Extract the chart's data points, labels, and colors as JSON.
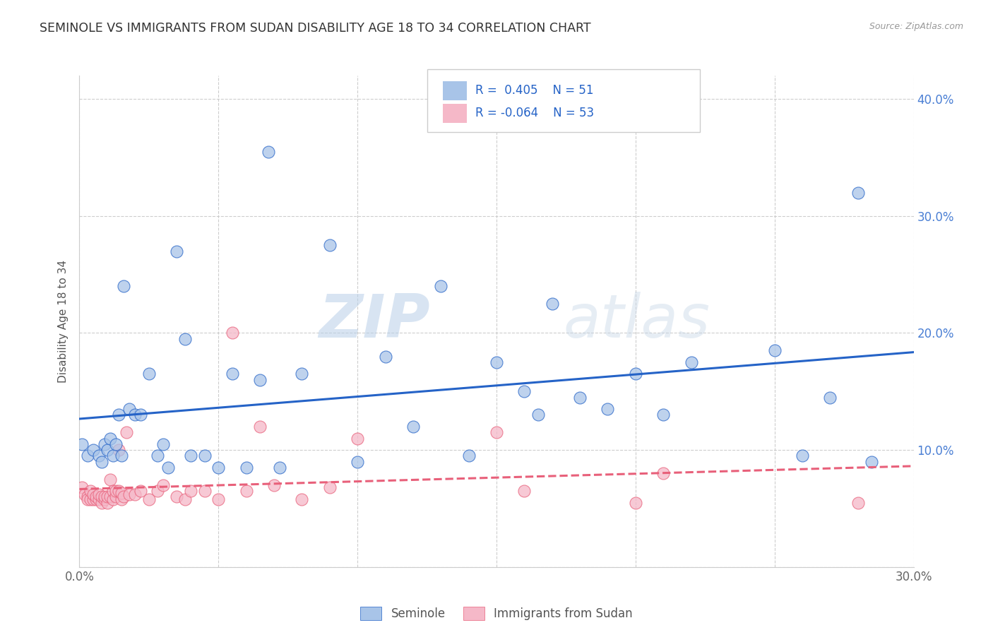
{
  "title": "SEMINOLE VS IMMIGRANTS FROM SUDAN DISABILITY AGE 18 TO 34 CORRELATION CHART",
  "source": "Source: ZipAtlas.com",
  "ylabel": "Disability Age 18 to 34",
  "xlim": [
    0.0,
    0.3
  ],
  "ylim": [
    0.0,
    0.42
  ],
  "seminole_color": "#a8c4e8",
  "immigrants_color": "#f5b8c8",
  "trend_seminole_color": "#2563c7",
  "trend_immigrants_color": "#e8607a",
  "right_axis_color": "#4a7fd4",
  "legend_seminole_label": "Seminole",
  "legend_immigrants_label": "Immigrants from Sudan",
  "r_seminole": "0.405",
  "n_seminole": "51",
  "r_immigrants": "-0.064",
  "n_immigrants": "53",
  "watermark_zip": "ZIP",
  "watermark_atlas": "atlas",
  "background_color": "#ffffff",
  "grid_color": "#c8c8c8",
  "seminole_x": [
    0.001,
    0.003,
    0.005,
    0.007,
    0.008,
    0.009,
    0.01,
    0.011,
    0.012,
    0.013,
    0.014,
    0.015,
    0.016,
    0.018,
    0.02,
    0.022,
    0.025,
    0.028,
    0.03,
    0.032,
    0.035,
    0.038,
    0.04,
    0.045,
    0.05,
    0.055,
    0.06,
    0.065,
    0.068,
    0.072,
    0.08,
    0.09,
    0.1,
    0.11,
    0.12,
    0.13,
    0.14,
    0.15,
    0.16,
    0.165,
    0.17,
    0.18,
    0.19,
    0.2,
    0.21,
    0.22,
    0.25,
    0.26,
    0.27,
    0.28,
    0.285
  ],
  "seminole_y": [
    0.105,
    0.095,
    0.1,
    0.095,
    0.09,
    0.105,
    0.1,
    0.11,
    0.095,
    0.105,
    0.13,
    0.095,
    0.24,
    0.135,
    0.13,
    0.13,
    0.165,
    0.095,
    0.105,
    0.085,
    0.27,
    0.195,
    0.095,
    0.095,
    0.085,
    0.165,
    0.085,
    0.16,
    0.355,
    0.085,
    0.165,
    0.275,
    0.09,
    0.18,
    0.12,
    0.24,
    0.095,
    0.175,
    0.15,
    0.13,
    0.225,
    0.145,
    0.135,
    0.165,
    0.13,
    0.175,
    0.185,
    0.095,
    0.145,
    0.32,
    0.09
  ],
  "immigrants_x": [
    0.001,
    0.002,
    0.003,
    0.003,
    0.004,
    0.004,
    0.005,
    0.005,
    0.006,
    0.006,
    0.007,
    0.007,
    0.008,
    0.008,
    0.009,
    0.009,
    0.01,
    0.01,
    0.011,
    0.011,
    0.012,
    0.012,
    0.013,
    0.013,
    0.014,
    0.014,
    0.015,
    0.015,
    0.016,
    0.017,
    0.018,
    0.02,
    0.022,
    0.025,
    0.028,
    0.03,
    0.035,
    0.038,
    0.04,
    0.045,
    0.05,
    0.055,
    0.06,
    0.065,
    0.07,
    0.08,
    0.09,
    0.1,
    0.15,
    0.16,
    0.2,
    0.21,
    0.28
  ],
  "immigrants_y": [
    0.068,
    0.062,
    0.06,
    0.058,
    0.058,
    0.065,
    0.058,
    0.062,
    0.058,
    0.06,
    0.058,
    0.062,
    0.055,
    0.06,
    0.058,
    0.06,
    0.055,
    0.06,
    0.06,
    0.075,
    0.058,
    0.065,
    0.06,
    0.065,
    0.1,
    0.065,
    0.058,
    0.063,
    0.06,
    0.115,
    0.062,
    0.062,
    0.065,
    0.058,
    0.065,
    0.07,
    0.06,
    0.058,
    0.065,
    0.065,
    0.058,
    0.2,
    0.065,
    0.12,
    0.07,
    0.058,
    0.068,
    0.11,
    0.115,
    0.065,
    0.055,
    0.08,
    0.055
  ]
}
